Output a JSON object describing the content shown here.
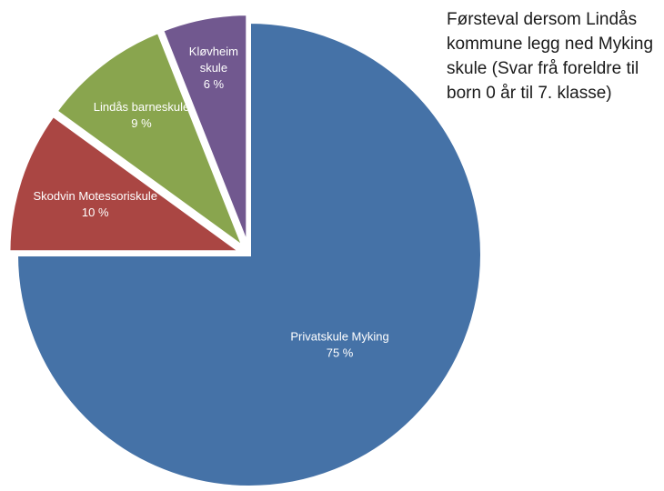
{
  "chart_data": {
    "type": "pie",
    "title": "Førsteval dersom Lindås kommune legg ned Myking skule (Svar frå foreldre til born 0 år til 7. klasse)",
    "slices": [
      {
        "name": "Privatskule Myking",
        "value": 75,
        "label": "75 %",
        "color": "#4572a7",
        "exploded": false
      },
      {
        "name": "Skodvin Motessoriskule",
        "value": 10,
        "label": "10 %",
        "color": "#aa4643",
        "exploded": true
      },
      {
        "name": "Lindås barneskule",
        "value": 9,
        "label": "9 %",
        "color": "#89a54e",
        "exploded": true
      },
      {
        "name": "Kløvheim skule",
        "value": 6,
        "label": "6 %",
        "color": "#71588f",
        "exploded": true
      }
    ],
    "start_angle": "top",
    "direction": "clockwise",
    "legend": "none",
    "data_labels": "inside"
  }
}
